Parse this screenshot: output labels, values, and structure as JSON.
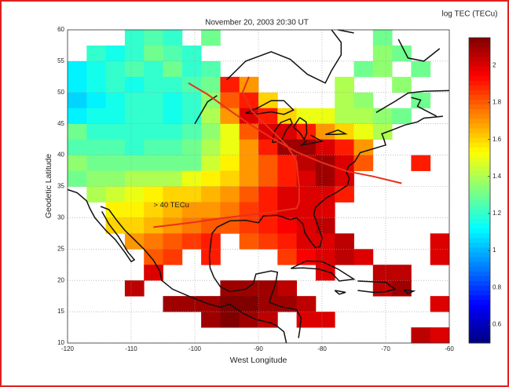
{
  "chart_data": {
    "type": "heatmap",
    "title": "November 20,  2003  20:30 UT",
    "x_label": "West Longitude",
    "y_label": "Geodetic Latitude",
    "colorbar_label": "log TEC (TECu)",
    "annotation": "> 40 TECu",
    "xlim": [
      -120,
      -60
    ],
    "xticks": [
      -120,
      -110,
      -100,
      -90,
      -80,
      -70,
      -60
    ],
    "ylim": [
      10,
      60
    ],
    "yticks": [
      10,
      15,
      20,
      25,
      30,
      35,
      40,
      45,
      50,
      55,
      60
    ],
    "clim": [
      0.5,
      2.15
    ],
    "cticks": [
      0.6,
      0.8,
      1,
      1.2,
      1.4,
      1.6,
      1.8,
      2
    ],
    "colormap": "jet",
    "grid": true,
    "x": [
      -120,
      -117,
      -114,
      -111,
      -108,
      -105,
      -102,
      -99,
      -96,
      -93,
      -90,
      -87,
      -84,
      -81,
      -78,
      -75,
      -72,
      -69,
      -66,
      -63
    ],
    "y": [
      57.5,
      55,
      52.5,
      50,
      47.5,
      45,
      42.5,
      40,
      37.5,
      35,
      32.5,
      30,
      27.5,
      25,
      22.5,
      20,
      17.5,
      15,
      12.5,
      10
    ],
    "z": [
      [
        null,
        null,
        null,
        1.2,
        1.25,
        1.2,
        null,
        1.3,
        null,
        null,
        null,
        null,
        null,
        null,
        null,
        null,
        1.3,
        null,
        null,
        null
      ],
      [
        null,
        1.2,
        1.15,
        1.2,
        1.3,
        1.25,
        1.2,
        null,
        null,
        null,
        null,
        null,
        null,
        null,
        null,
        null,
        1.35,
        1.3,
        null,
        null
      ],
      [
        1.1,
        1.15,
        1.2,
        1.25,
        1.2,
        1.3,
        1.2,
        1.25,
        null,
        null,
        null,
        null,
        null,
        null,
        null,
        1.3,
        1.35,
        null,
        1.3,
        null
      ],
      [
        1.1,
        1.15,
        1.2,
        1.15,
        1.2,
        1.2,
        1.25,
        1.3,
        1.9,
        1.7,
        null,
        null,
        null,
        null,
        1.4,
        null,
        null,
        1.35,
        null,
        null
      ],
      [
        1.05,
        1.1,
        1.15,
        1.2,
        1.2,
        1.15,
        1.2,
        1.35,
        1.8,
        1.9,
        1.6,
        null,
        null,
        null,
        1.4,
        1.35,
        null,
        null,
        1.3,
        null
      ],
      [
        1.1,
        1.15,
        1.15,
        1.2,
        1.2,
        1.15,
        1.2,
        1.4,
        1.7,
        2.0,
        1.9,
        1.6,
        1.5,
        1.5,
        1.4,
        1.4,
        1.35,
        1.3,
        null,
        null
      ],
      [
        1.3,
        1.2,
        1.2,
        1.2,
        1.2,
        1.2,
        1.25,
        1.35,
        1.5,
        1.8,
        2.0,
        2.0,
        1.9,
        1.7,
        1.6,
        1.5,
        1.4,
        null,
        null,
        null
      ],
      [
        1.25,
        1.25,
        1.25,
        1.2,
        1.25,
        1.25,
        1.3,
        1.4,
        1.5,
        1.7,
        1.9,
        2.1,
        2.1,
        2.0,
        1.9,
        1.7,
        null,
        null,
        null,
        null
      ],
      [
        1.35,
        1.3,
        1.3,
        1.3,
        1.3,
        1.3,
        1.3,
        1.45,
        1.55,
        1.7,
        1.8,
        1.9,
        2.05,
        2.1,
        2.0,
        1.8,
        null,
        null,
        1.9,
        null
      ],
      [
        1.3,
        1.35,
        1.35,
        1.4,
        1.4,
        1.4,
        1.5,
        1.55,
        1.6,
        1.7,
        1.8,
        1.9,
        2.0,
        2.1,
        2.0,
        null,
        null,
        null,
        null,
        null
      ],
      [
        null,
        1.4,
        1.45,
        1.5,
        1.55,
        1.6,
        1.6,
        1.65,
        1.7,
        1.8,
        1.9,
        2.0,
        2.0,
        2.0,
        1.9,
        null,
        null,
        null,
        null,
        null
      ],
      [
        null,
        null,
        1.55,
        1.55,
        1.6,
        1.65,
        1.7,
        1.7,
        1.75,
        1.85,
        1.9,
        2.0,
        2.0,
        2.0,
        null,
        null,
        null,
        null,
        null,
        null
      ],
      [
        null,
        null,
        1.6,
        1.6,
        1.65,
        1.7,
        1.75,
        1.8,
        1.8,
        1.85,
        1.9,
        1.95,
        2.0,
        2.05,
        null,
        null,
        null,
        null,
        null,
        null
      ],
      [
        null,
        null,
        null,
        1.7,
        1.75,
        1.8,
        1.85,
        1.9,
        null,
        1.8,
        1.85,
        1.9,
        2.0,
        2.0,
        2.05,
        null,
        null,
        null,
        null,
        2.0
      ],
      [
        null,
        null,
        null,
        null,
        1.8,
        1.85,
        null,
        1.9,
        null,
        null,
        null,
        1.85,
        1.95,
        2.0,
        2.05,
        2.0,
        null,
        null,
        null,
        2.0
      ],
      [
        null,
        null,
        null,
        null,
        2.0,
        null,
        null,
        null,
        null,
        null,
        null,
        null,
        null,
        2.0,
        null,
        null,
        2.05,
        2.05,
        null,
        null
      ],
      [
        null,
        null,
        null,
        2.05,
        null,
        null,
        null,
        null,
        2.1,
        2.1,
        2.1,
        2.05,
        null,
        null,
        null,
        null,
        2.05,
        2.1,
        null,
        null
      ],
      [
        null,
        null,
        null,
        null,
        null,
        2.1,
        2.1,
        2.1,
        2.15,
        2.15,
        2.1,
        2.1,
        2.05,
        null,
        null,
        null,
        null,
        null,
        null,
        2.0
      ],
      [
        null,
        null,
        null,
        null,
        null,
        null,
        null,
        2.1,
        2.15,
        2.1,
        2.05,
        null,
        2.0,
        2.0,
        null,
        null,
        null,
        null,
        null,
        null
      ],
      [
        null,
        null,
        null,
        null,
        null,
        null,
        null,
        null,
        null,
        null,
        null,
        null,
        null,
        null,
        null,
        null,
        null,
        null,
        2.05,
        2.0
      ]
    ]
  }
}
